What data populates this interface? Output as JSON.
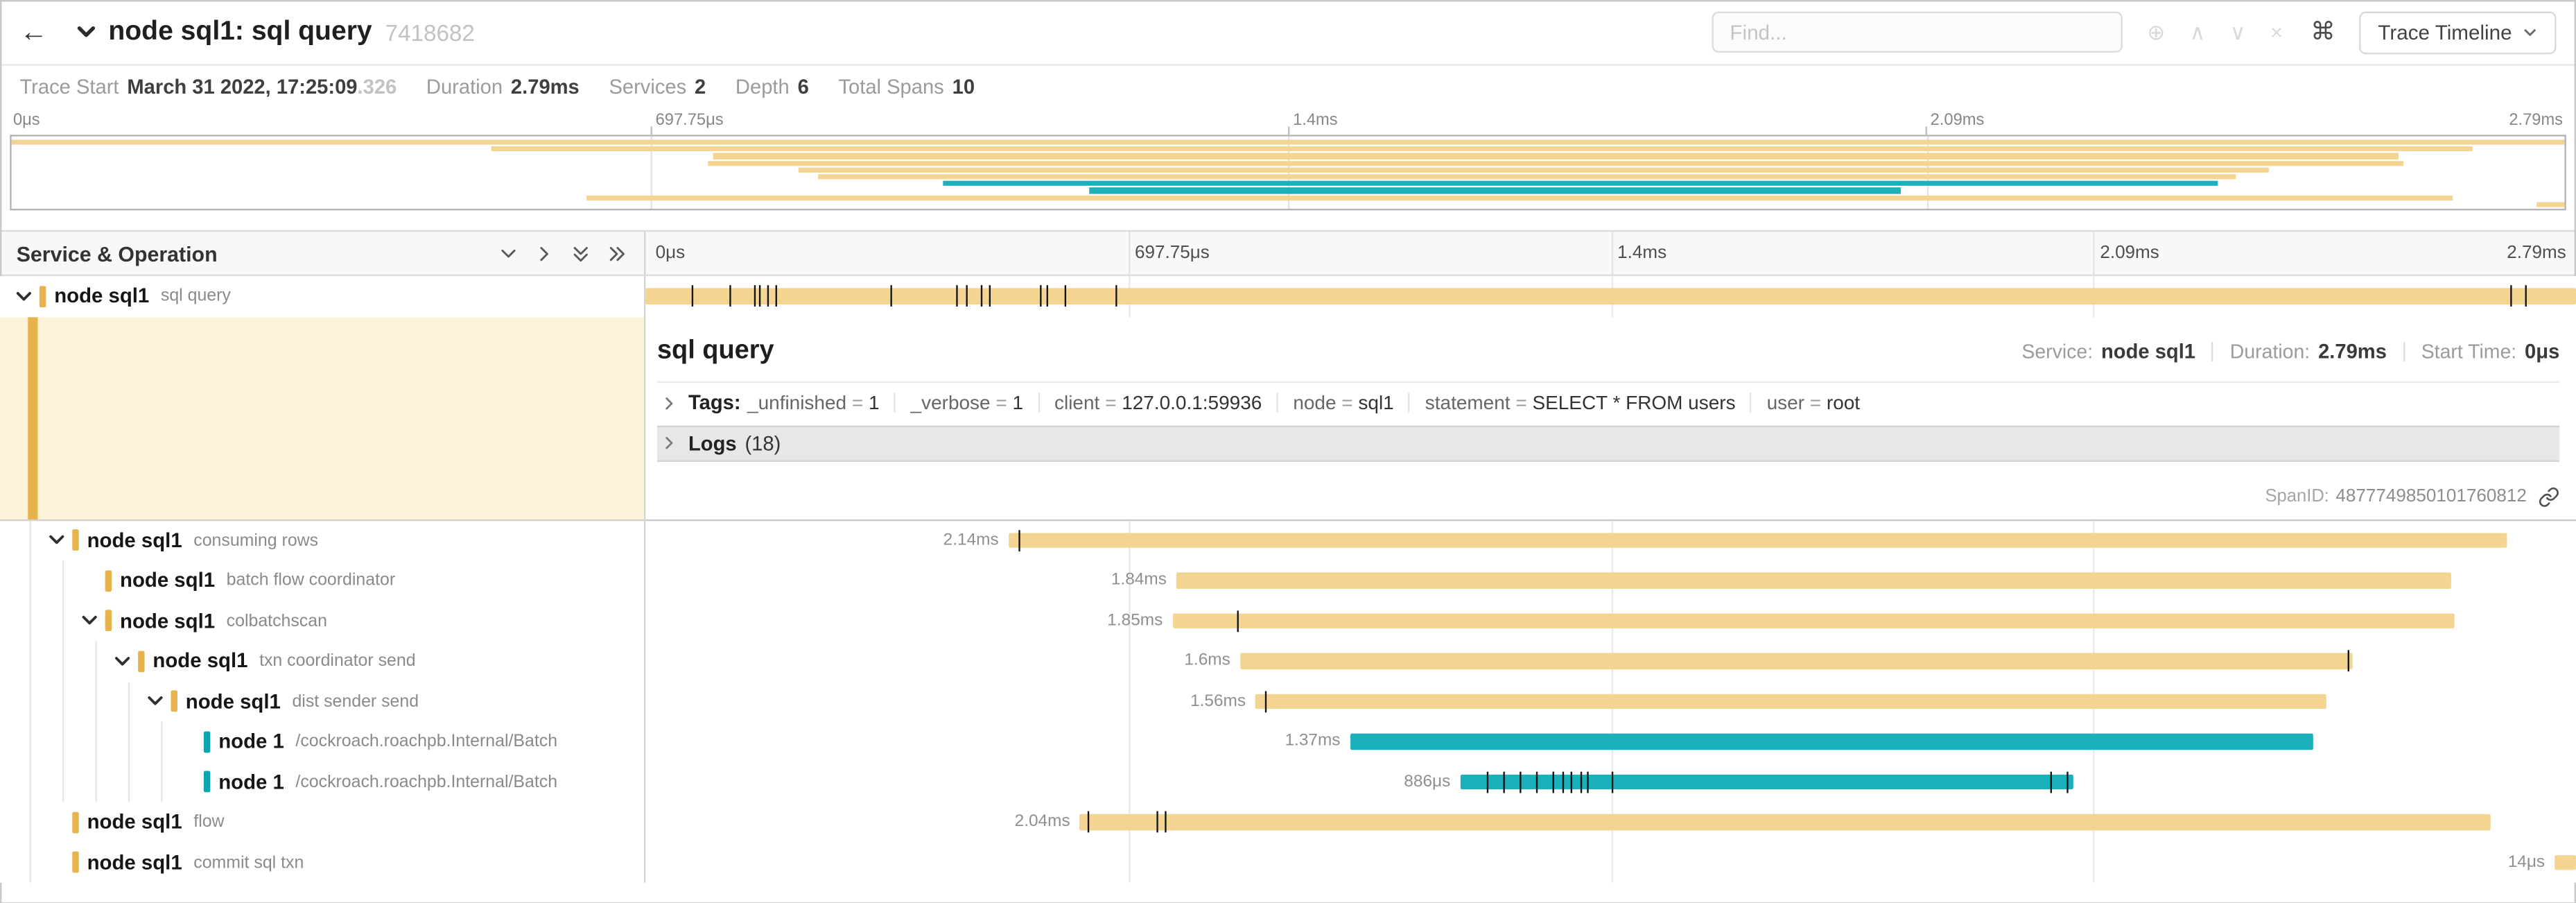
{
  "colors": {
    "tan": "#F3D491",
    "teal": "#1BB0BC",
    "tan_accent": "#E8B24D",
    "teal_accent": "#0FA3B1",
    "selected_bg": "#FBF3D8"
  },
  "topbar": {
    "back_icon": "←",
    "title": "node sql1: sql query",
    "trace_id": "7418682",
    "find_placeholder": "Find...",
    "focus_icon": "⊕",
    "prev_icon": "∧",
    "next_icon": "∨",
    "clear_icon": "×",
    "shortcut_key": "⌘",
    "view_button_label": "Trace Timeline"
  },
  "summary": {
    "trace_start_label": "Trace Start",
    "trace_start_value": "March 31 2022, 17:25:09",
    "trace_start_fraction": ".326",
    "duration_label": "Duration",
    "duration_value": "2.79ms",
    "services_label": "Services",
    "services_value": "2",
    "depth_label": "Depth",
    "depth_value": "6",
    "total_spans_label": "Total Spans",
    "total_spans_value": "10"
  },
  "axis_ticks": {
    "t0": "0μs",
    "t25": "697.75μs",
    "t50": "1.4ms",
    "t75": "2.09ms",
    "t100": "2.79ms"
  },
  "left_header": {
    "title": "Service & Operation"
  },
  "detail": {
    "title": "sql query",
    "service_label": "Service:",
    "service_value": "node sql1",
    "duration_label": "Duration:",
    "duration_value": "2.79ms",
    "start_time_label": "Start Time:",
    "start_time_value": "0μs",
    "tags_label": "Tags:",
    "tags": [
      {
        "key": "_unfinished",
        "value": "1"
      },
      {
        "key": "_verbose",
        "value": "1"
      },
      {
        "key": "client",
        "value": "127.0.0.1:59936"
      },
      {
        "key": "node",
        "value": "sql1"
      },
      {
        "key": "statement",
        "value": "SELECT * FROM users"
      },
      {
        "key": "user",
        "value": "root"
      }
    ],
    "logs_label": "Logs",
    "logs_count": "(18)",
    "span_id_label": "SpanID:",
    "span_id_value": "4877749850101760812"
  },
  "spans": {
    "root": {
      "service": "node sql1",
      "operation": "sql query",
      "depth": 0,
      "expandable": true,
      "color": "tan",
      "start": 0,
      "end": 100,
      "label": "",
      "ticks": [
        2.4,
        4.3,
        5.6,
        5.9,
        6.3,
        6.7,
        12.7,
        16.1,
        16.6,
        17.4,
        17.8,
        20.4,
        20.8,
        21.7,
        24.3,
        96.6,
        97.4
      ]
    },
    "children": [
      {
        "service": "node sql1",
        "operation": "consuming rows",
        "depth": 1,
        "expandable": true,
        "color": "tan",
        "start": 18.8,
        "end": 96.4,
        "label": "2.14ms",
        "ticks": [
          19.3
        ]
      },
      {
        "service": "node sql1",
        "operation": "batch flow coordinator",
        "depth": 2,
        "expandable": false,
        "color": "tan",
        "start": 27.5,
        "end": 93.5,
        "label": "1.84ms",
        "ticks": []
      },
      {
        "service": "node sql1",
        "operation": "colbatchscan",
        "depth": 2,
        "expandable": true,
        "color": "tan",
        "start": 27.3,
        "end": 93.7,
        "label": "1.85ms",
        "ticks": [
          30.6
        ]
      },
      {
        "service": "node sql1",
        "operation": "txn coordinator send",
        "depth": 3,
        "expandable": true,
        "color": "tan",
        "start": 30.8,
        "end": 88.4,
        "label": "1.6ms",
        "ticks": [
          88.2
        ]
      },
      {
        "service": "node sql1",
        "operation": "dist sender send",
        "depth": 4,
        "expandable": true,
        "color": "tan",
        "start": 31.6,
        "end": 87.1,
        "label": "1.56ms",
        "ticks": [
          32.1
        ]
      },
      {
        "service": "node 1",
        "operation": "/cockroach.roachpb.Internal/Batch",
        "depth": 5,
        "expandable": false,
        "color": "teal",
        "start": 36.5,
        "end": 86.4,
        "label": "1.37ms",
        "ticks": []
      },
      {
        "service": "node 1",
        "operation": "/cockroach.roachpb.Internal/Batch",
        "depth": 5,
        "expandable": false,
        "color": "teal",
        "start": 42.2,
        "end": 74.0,
        "label": "886μs",
        "ticks": [
          43.6,
          44.4,
          45.3,
          46.1,
          47.0,
          47.5,
          47.9,
          48.4,
          48.8,
          50.0,
          72.8,
          73.6
        ]
      },
      {
        "service": "node sql1",
        "operation": "flow",
        "depth": 1,
        "expandable": false,
        "color": "tan",
        "start": 22.5,
        "end": 95.6,
        "label": "2.04ms",
        "ticks": [
          22.9,
          26.5,
          26.9
        ]
      },
      {
        "service": "node sql1",
        "operation": "commit sql txn",
        "depth": 1,
        "expandable": false,
        "color": "tan",
        "start": 98.9,
        "end": 100,
        "label": "14μs",
        "ticks": []
      }
    ]
  }
}
